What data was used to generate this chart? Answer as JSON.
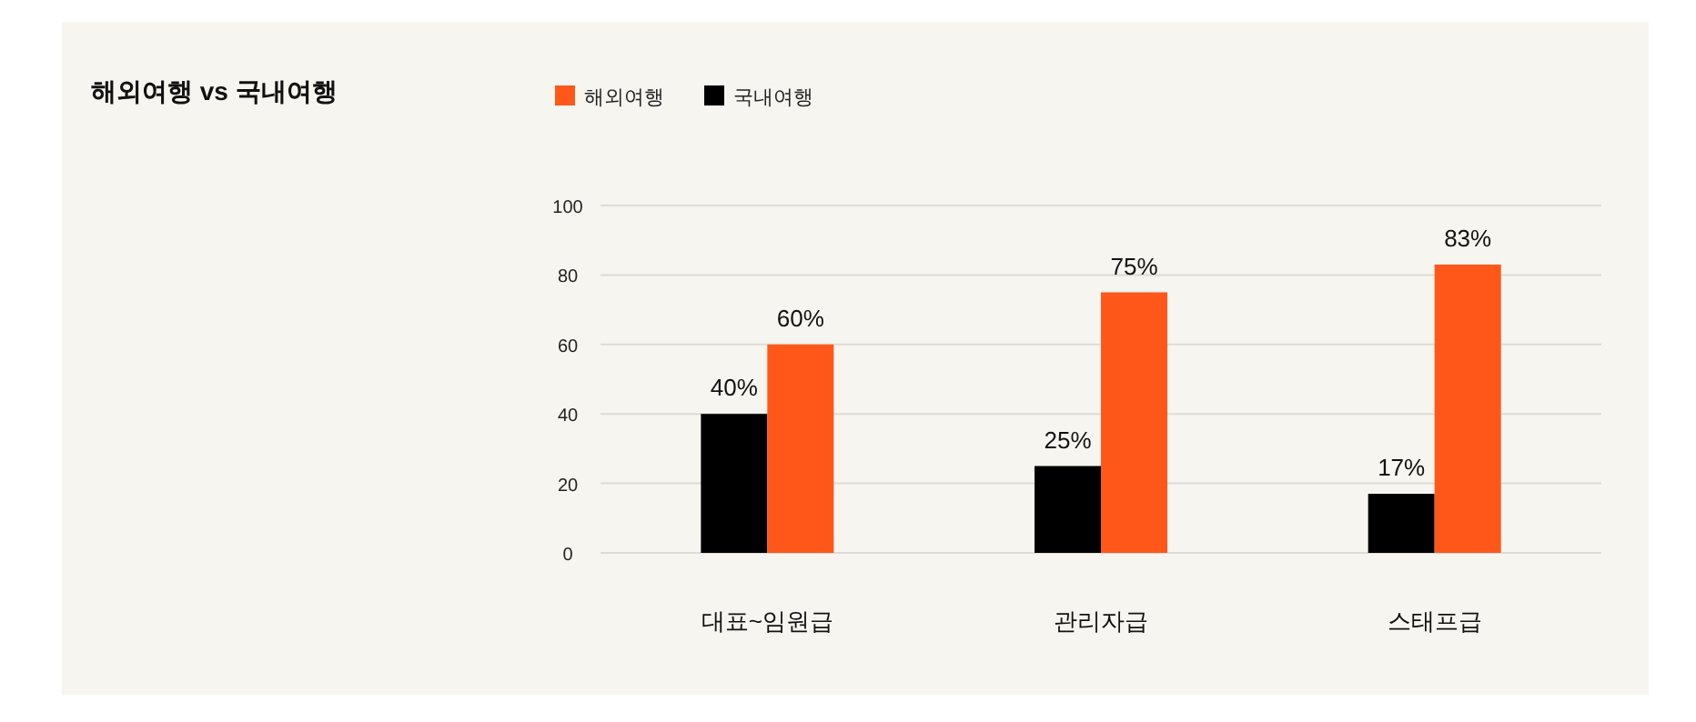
{
  "chart_data": {
    "type": "bar",
    "title": "해외여행 vs 국내여행",
    "categories": [
      "대표~임원급",
      "관리자급",
      "스태프급"
    ],
    "series": [
      {
        "name": "국내여행",
        "color": "#000000",
        "values": [
          40,
          25,
          17
        ],
        "value_labels": [
          "40%",
          "25%",
          "17%"
        ]
      },
      {
        "name": "해외여행",
        "color": "#ff5719",
        "values": [
          60,
          75,
          83
        ],
        "value_labels": [
          "60%",
          "75%",
          "83%"
        ]
      }
    ],
    "ylim": [
      0,
      100
    ],
    "yticks": [
      0,
      20,
      40,
      60,
      80,
      100
    ],
    "grid": "y",
    "legend": "top left"
  }
}
